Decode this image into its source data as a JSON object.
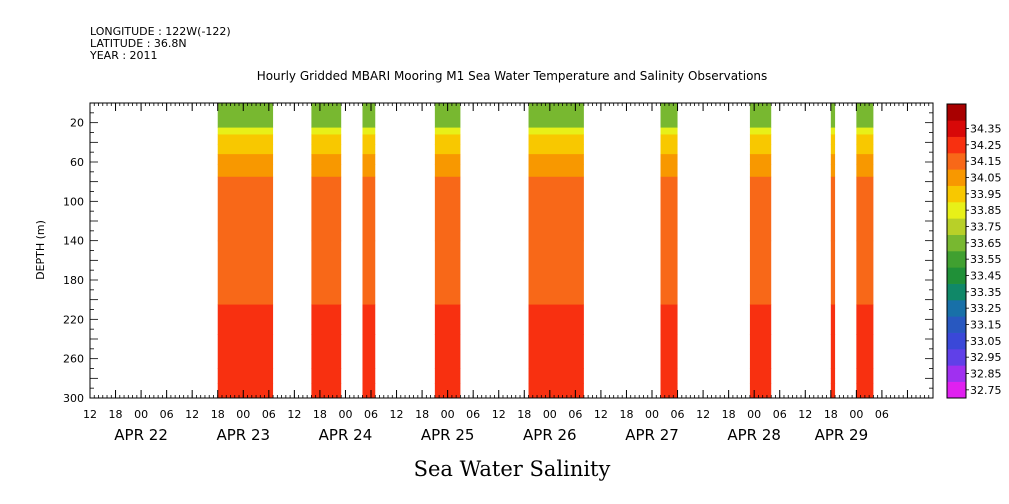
{
  "header": {
    "longitude": "LONGITUDE : 122W(-122)",
    "latitude": "LATITUDE : 36.8N",
    "year": "YEAR : 2011"
  },
  "chart_data": {
    "type": "heatmap",
    "title": "Hourly Gridded MBARI Mooring M1 Sea Water Temperature and Salinity Observations",
    "xlabel": "Sea Water Salinity",
    "ylabel": "DEPTH (m)",
    "x_unit": "hours since APR 22 00:00, 2011",
    "xlim": [
      -12,
      186
    ],
    "ylim": [
      300,
      0
    ],
    "y_ticks": [
      20,
      60,
      100,
      140,
      180,
      220,
      260,
      300
    ],
    "x_hour_tick_labels": [
      "12",
      "18",
      "00",
      "06",
      "12",
      "18",
      "00",
      "06",
      "12",
      "18",
      "00",
      "06",
      "12",
      "18",
      "00",
      "06",
      "12",
      "18",
      "00",
      "06",
      "12",
      "18",
      "00",
      "06",
      "12",
      "18",
      "00",
      "06",
      "12",
      "18",
      "00",
      "06"
    ],
    "x_date_labels": [
      "APR 22",
      "APR 23",
      "APR 24",
      "APR 25",
      "APR 26",
      "APR 27",
      "APR 28",
      "APR 29"
    ],
    "colorbar": {
      "levels": [
        32.75,
        32.85,
        32.95,
        33.05,
        33.15,
        33.25,
        33.35,
        33.45,
        33.55,
        33.65,
        33.75,
        33.85,
        33.95,
        34.05,
        34.15,
        34.25,
        34.35
      ],
      "colors": [
        "#e020f0",
        "#a030f0",
        "#6040e8",
        "#3a48d8",
        "#2858c0",
        "#1870a8",
        "#108868",
        "#209038",
        "#40a030",
        "#78b830",
        "#b8d028",
        "#e8f018",
        "#f8c800",
        "#f89800",
        "#f86818",
        "#f83010",
        "#d80808",
        "#a80000"
      ]
    },
    "depth_bands": [
      {
        "top": 0,
        "bottom": 25,
        "value": 33.6
      },
      {
        "top": 25,
        "bottom": 32,
        "value": 33.75
      },
      {
        "top": 32,
        "bottom": 42,
        "value": 33.85
      },
      {
        "top": 42,
        "bottom": 52,
        "value": 33.92
      },
      {
        "top": 52,
        "bottom": 62,
        "value": 33.98
      },
      {
        "top": 62,
        "bottom": 75,
        "value": 34.02
      },
      {
        "top": 75,
        "bottom": 140,
        "value": 34.07
      },
      {
        "top": 140,
        "bottom": 205,
        "value": 34.12
      },
      {
        "top": 205,
        "bottom": 235,
        "value": 34.17
      },
      {
        "top": 235,
        "bottom": 270,
        "value": 34.23
      },
      {
        "top": 270,
        "bottom": 285,
        "value": 34.2
      },
      {
        "top": 285,
        "bottom": 300,
        "value": 34.17
      }
    ],
    "data_segments": [
      {
        "start": 18,
        "end": 31
      },
      {
        "start": 40,
        "end": 47
      },
      {
        "start": 52,
        "end": 55
      },
      {
        "start": 69,
        "end": 75
      },
      {
        "start": 91,
        "end": 104
      },
      {
        "start": 122,
        "end": 126
      },
      {
        "start": 143,
        "end": 148
      },
      {
        "start": 162,
        "end": 163
      },
      {
        "start": 168,
        "end": 172
      }
    ]
  }
}
